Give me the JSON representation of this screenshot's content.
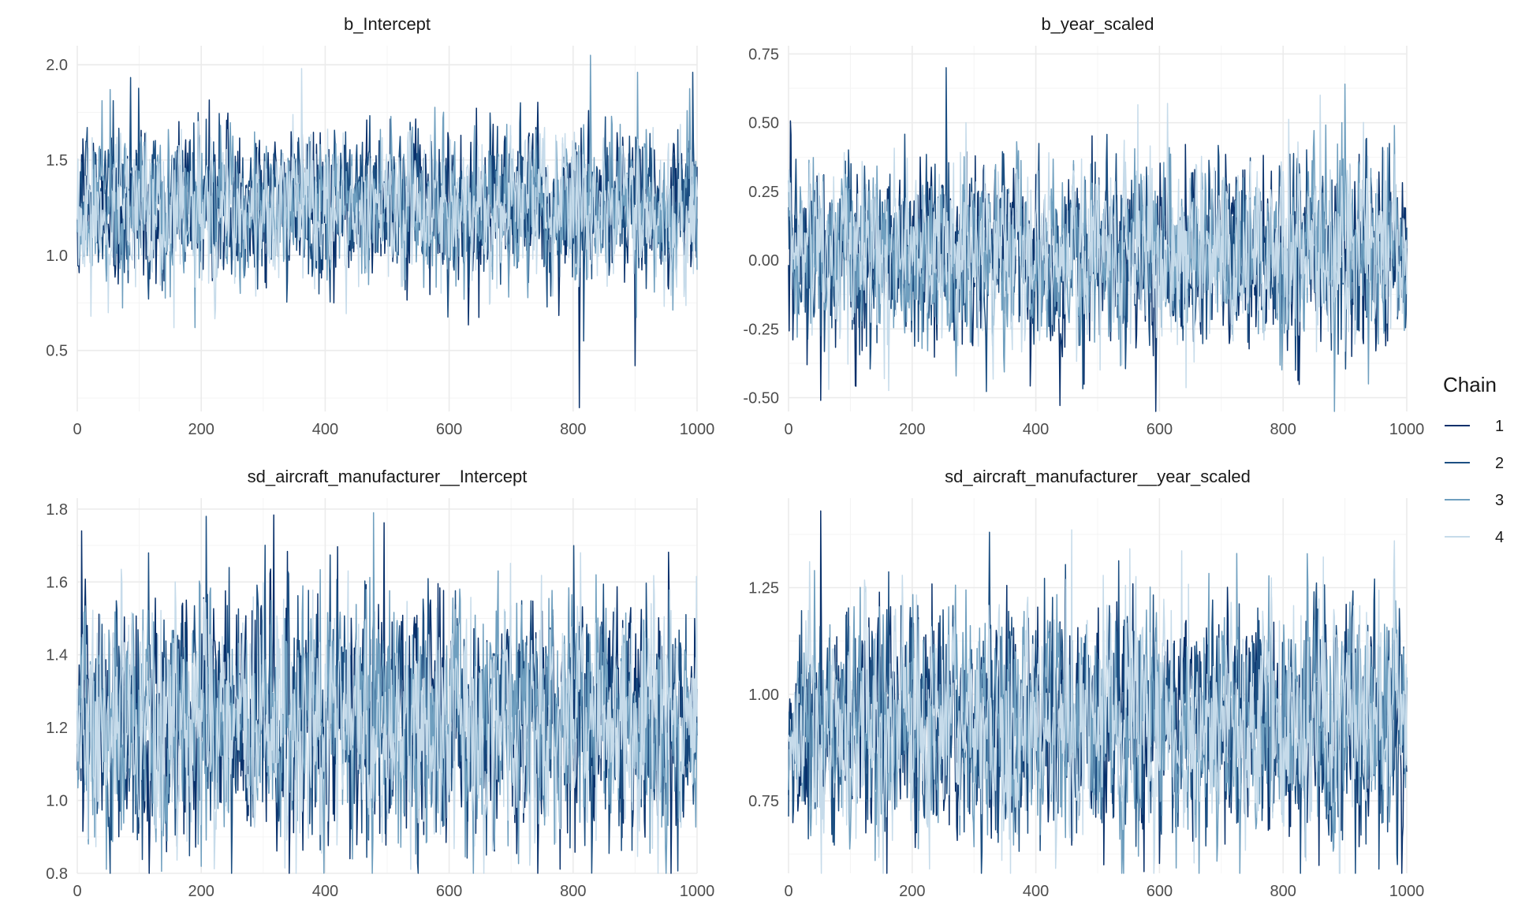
{
  "chart_data": [
    {
      "type": "line",
      "title": "b_Intercept",
      "xlim": [
        0,
        1000
      ],
      "ylim": [
        0.18,
        2.1
      ],
      "x_ticks": [
        0,
        200,
        400,
        600,
        800,
        1000
      ],
      "x_tick_labels": [
        "0",
        "200",
        "400",
        "600",
        "800",
        "1000"
      ],
      "y_ticks": [
        0.5,
        1.0,
        1.5,
        2.0
      ],
      "y_tick_labels": [
        "0.5",
        "1.0",
        "1.5",
        "2.0"
      ],
      "trace": {
        "center": 1.25,
        "sd": 0.19,
        "seed": 11,
        "spikes": [
          [
            810,
            0.2
          ],
          [
            817,
            0.55
          ],
          [
            828,
            2.05
          ],
          [
            362,
            1.98
          ],
          [
            900,
            0.42
          ],
          [
            993,
            1.96
          ],
          [
            53,
            1.87
          ],
          [
            22,
            0.68
          ]
        ]
      }
    },
    {
      "type": "line",
      "title": "b_year_scaled",
      "xlim": [
        0,
        1000
      ],
      "ylim": [
        -0.55,
        0.78
      ],
      "x_ticks": [
        0,
        200,
        400,
        600,
        800,
        1000
      ],
      "x_tick_labels": [
        "0",
        "200",
        "400",
        "600",
        "800",
        "1000"
      ],
      "y_ticks": [
        -0.5,
        -0.25,
        0.0,
        0.25,
        0.5,
        0.75
      ],
      "y_tick_labels": [
        "-0.50",
        "-0.25",
        "0.00",
        "0.25",
        "0.50",
        "0.75"
      ],
      "trace": {
        "center": 0.03,
        "sd": 0.16,
        "seed": 23,
        "spikes": [
          [
            52,
            -0.51
          ],
          [
            255,
            0.7
          ],
          [
            900,
            0.64
          ],
          [
            860,
            0.6
          ],
          [
            30,
            -0.38
          ],
          [
            820,
            -0.4
          ],
          [
            980,
            0.49
          ],
          [
            287,
            0.5
          ]
        ]
      }
    },
    {
      "type": "line",
      "title": "sd_aircraft_manufacturer__Intercept",
      "xlim": [
        0,
        1000
      ],
      "ylim": [
        0.8,
        1.83
      ],
      "x_ticks": [
        0,
        200,
        400,
        600,
        800,
        1000
      ],
      "x_tick_labels": [
        "0",
        "200",
        "400",
        "600",
        "800",
        "1000"
      ],
      "y_ticks": [
        0.8,
        1.0,
        1.2,
        1.4,
        1.6,
        1.8
      ],
      "y_tick_labels": [
        "0.8",
        "1.0",
        "1.2",
        "1.4",
        "1.6",
        "1.8"
      ],
      "trace": {
        "center": 1.22,
        "sd": 0.16,
        "seed": 37,
        "spikes": [
          [
            7,
            1.74
          ],
          [
            208,
            1.78
          ],
          [
            478,
            1.79
          ],
          [
            812,
            1.68
          ],
          [
            440,
            0.84
          ],
          [
            660,
            0.85
          ],
          [
            195,
            0.88
          ]
        ]
      }
    },
    {
      "type": "line",
      "title": "sd_aircraft_manufacturer__year_scaled",
      "xlim": [
        0,
        1000
      ],
      "ylim": [
        0.58,
        1.46
      ],
      "x_ticks": [
        0,
        200,
        400,
        600,
        800,
        1000
      ],
      "x_tick_labels": [
        "0",
        "200",
        "400",
        "600",
        "800",
        "1000"
      ],
      "y_ticks": [
        0.75,
        1.0,
        1.25
      ],
      "y_tick_labels": [
        "0.75",
        "1.00",
        "1.25"
      ],
      "trace": {
        "center": 0.93,
        "sd": 0.13,
        "seed": 51,
        "spikes": [
          [
            52,
            1.43
          ],
          [
            325,
            1.38
          ],
          [
            725,
            1.33
          ],
          [
            980,
            1.36
          ],
          [
            510,
            0.6
          ],
          [
            955,
            0.59
          ],
          [
            140,
            0.61
          ]
        ]
      }
    }
  ],
  "legend": {
    "title": "Chain",
    "entries": [
      {
        "label": "1",
        "color": "#08306b"
      },
      {
        "label": "2",
        "color": "#1c4f82"
      },
      {
        "label": "3",
        "color": "#6f9fbf"
      },
      {
        "label": "4",
        "color": "#c6dbea"
      }
    ]
  }
}
